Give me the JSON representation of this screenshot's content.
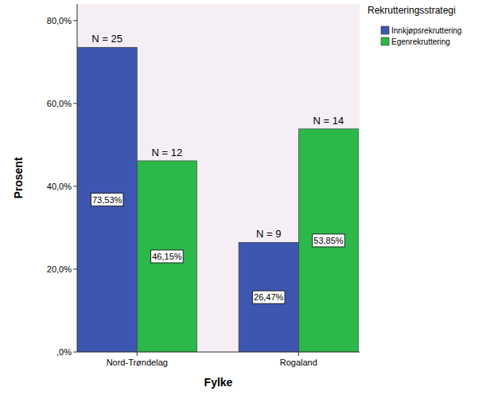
{
  "chart_data": {
    "type": "bar",
    "x_label": "Fylke",
    "y_label": "Prosent",
    "legend_title": "Rekrutteringsstrategi",
    "legend": "top-right",
    "grid": false,
    "data_labels": true,
    "categories": [
      "Nord-Trøndelag",
      "Rogaland"
    ],
    "series": [
      {
        "name": "Innkjøpsrekruttering",
        "color": "#3d57b0",
        "values": [
          73.53,
          26.47
        ],
        "value_labels": [
          "73,53%",
          "26,47%"
        ],
        "n_labels": [
          "N = 25",
          "N = 9"
        ]
      },
      {
        "name": "Egenrekruttering",
        "color": "#2cb84b",
        "values": [
          46.15,
          53.85
        ],
        "value_labels": [
          "46,15%",
          "53,85%"
        ],
        "n_labels": [
          "N = 12",
          "N = 14"
        ]
      }
    ],
    "ylim": [
      0,
      84
    ],
    "yticks": [
      {
        "value": 0,
        "label": ",0%"
      },
      {
        "value": 20,
        "label": "20,0%"
      },
      {
        "value": 40,
        "label": "40,0%"
      },
      {
        "value": 60,
        "label": "60,0%"
      },
      {
        "value": 80,
        "label": "80,0%"
      }
    ]
  }
}
